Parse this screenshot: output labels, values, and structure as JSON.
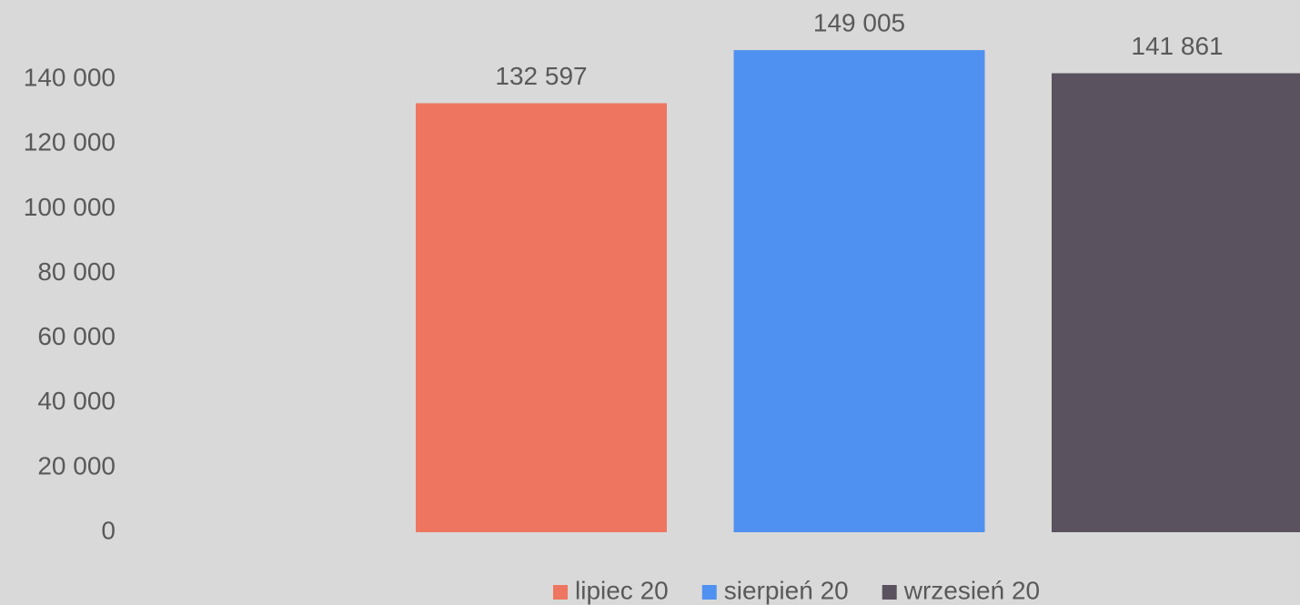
{
  "chart_data": {
    "type": "bar",
    "categories": [
      null
    ],
    "series": [
      {
        "name": "lipiec 20",
        "color": "#ee7661",
        "values": [
          132597
        ],
        "value_labels": [
          "132 597"
        ]
      },
      {
        "name": "sierpień 20",
        "color": "#4f91f0",
        "values": [
          149005
        ],
        "value_labels": [
          "149 005"
        ]
      },
      {
        "name": "wrzesień 20",
        "color": "#5a525e",
        "values": [
          141861
        ],
        "value_labels": [
          "141 861"
        ]
      }
    ],
    "ylim": [
      0,
      160000
    ],
    "yticks": [
      {
        "value": 0,
        "label": "0"
      },
      {
        "value": 20000,
        "label": "20 000"
      },
      {
        "value": 40000,
        "label": "40 000"
      },
      {
        "value": 60000,
        "label": "60 000"
      },
      {
        "value": 80000,
        "label": "80 000"
      },
      {
        "value": 100000,
        "label": "100 000"
      },
      {
        "value": 120000,
        "label": "120 000"
      },
      {
        "value": 140000,
        "label": "140 000"
      }
    ],
    "grid": false,
    "legend": "bottom"
  }
}
